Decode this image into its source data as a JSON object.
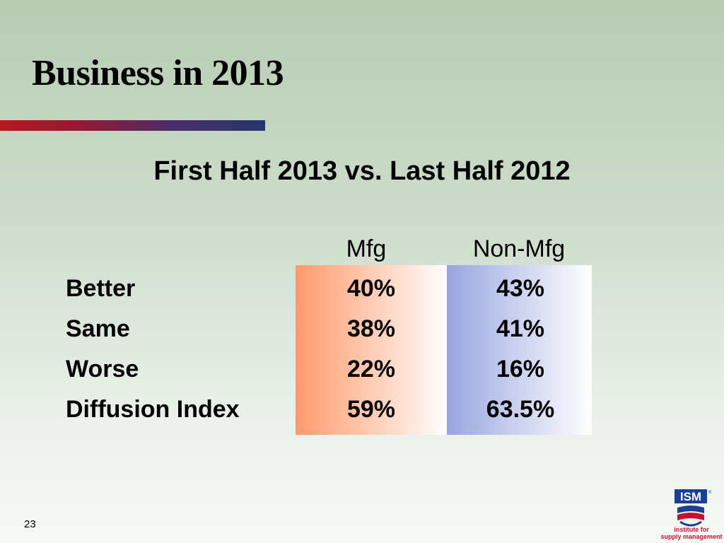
{
  "slide": {
    "title": "Business in 2013",
    "subtitle": "First Half 2013 vs. Last Half 2012",
    "page_number": "23"
  },
  "table": {
    "columns": [
      "Mfg",
      "Non-Mfg"
    ],
    "rows": [
      {
        "label": "Better",
        "mfg": "40%",
        "nonmfg": "43%"
      },
      {
        "label": "Same",
        "mfg": "38%",
        "nonmfg": "41%"
      },
      {
        "label": "Worse",
        "mfg": "22%",
        "nonmfg": "16%"
      },
      {
        "label": "Diffusion Index",
        "mfg": "59%",
        "nonmfg": "63.5%"
      }
    ]
  },
  "logo": {
    "brand": "ISM",
    "tagline_line1": "institute for",
    "tagline_line2": "supply management",
    "colors": {
      "blue": "#1b3f94",
      "red": "#c8102e"
    }
  },
  "colors": {
    "mfg_band": "#ff9a6c",
    "nonmfg_band": "#98a5de",
    "title_rule_start": "#b8171c",
    "title_rule_end": "#24386e"
  }
}
